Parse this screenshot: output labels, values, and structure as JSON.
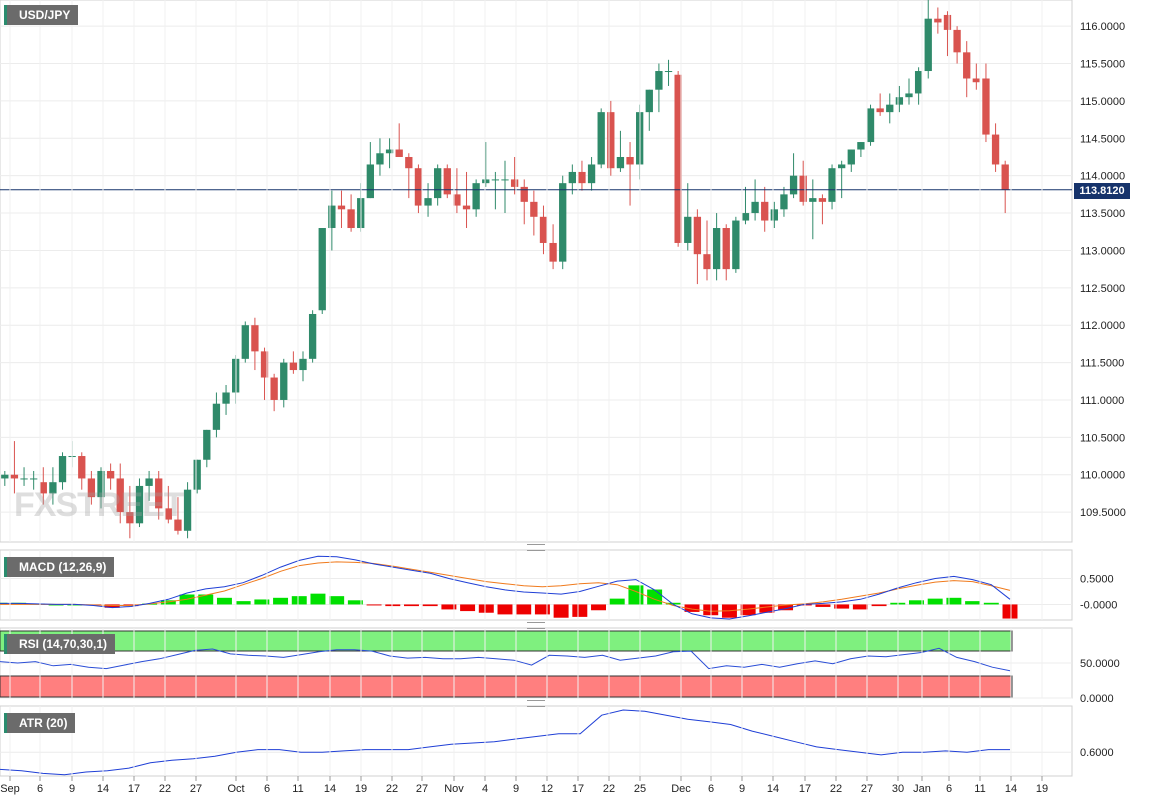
{
  "symbol": "USD/JPY",
  "brand": "FXSTREET",
  "last_price_label": "113.8120",
  "colors": {
    "up": "#2f8a6a",
    "down": "#d9534f",
    "price_line": "#16336b",
    "macd_line": "#1f3fd6",
    "signal_line": "#f07a1c",
    "hist_up": "#00e000",
    "hist_down": "#ee0000",
    "rsi_line": "#2a4dd6",
    "atr_line": "#1f3fd6"
  },
  "price_axis": {
    "ticks": [
      "116.0000",
      "115.5000",
      "115.0000",
      "114.5000",
      "114.0000",
      "113.5000",
      "113.0000",
      "112.5000",
      "112.0000",
      "111.5000",
      "111.0000",
      "110.5000",
      "110.0000",
      "109.5000"
    ]
  },
  "x_axis": {
    "labels": [
      "Sep",
      "6",
      "9",
      "14",
      "17",
      "22",
      "27",
      "Oct",
      "6",
      "11",
      "14",
      "19",
      "22",
      "27",
      "Nov",
      "4",
      "9",
      "12",
      "17",
      "22",
      "25",
      "Dec",
      "6",
      "9",
      "14",
      "17",
      "22",
      "27",
      "30",
      "Jan",
      "6",
      "11",
      "14",
      "19"
    ]
  },
  "panels": {
    "macd": {
      "label": "MACD (12,26,9)",
      "ticks": [
        "0.5000",
        "-0.0000"
      ]
    },
    "rsi": {
      "label": "RSI (14,70,30,1)",
      "ticks": [
        "50.0000",
        "0.0000"
      ]
    },
    "atr": {
      "label": "ATR (20)",
      "ticks": [
        "0.6000"
      ]
    }
  },
  "chart_data": [
    {
      "type": "candlestick",
      "title": "USD/JPY",
      "ylim": [
        109.1,
        116.35
      ],
      "last": 113.812,
      "candles": [
        [
          109.95,
          110.05,
          109.85,
          110.0
        ],
        [
          110.0,
          110.45,
          109.75,
          109.95
        ],
        [
          109.95,
          110.1,
          109.85,
          109.95
        ],
        [
          109.95,
          110.05,
          109.8,
          109.95
        ],
        [
          109.9,
          110.1,
          109.6,
          109.75
        ],
        [
          109.75,
          110.1,
          109.6,
          109.9
        ],
        [
          109.9,
          110.3,
          109.8,
          110.25
        ],
        [
          110.25,
          110.45,
          110.1,
          110.25
        ],
        [
          110.25,
          110.3,
          109.8,
          109.95
        ],
        [
          109.95,
          110.05,
          109.6,
          109.7
        ],
        [
          109.7,
          110.1,
          109.55,
          110.05
        ],
        [
          110.05,
          110.15,
          109.8,
          109.95
        ],
        [
          109.95,
          110.15,
          109.35,
          109.5
        ],
        [
          109.5,
          109.85,
          109.15,
          109.35
        ],
        [
          109.35,
          109.95,
          109.3,
          109.85
        ],
        [
          109.85,
          110.05,
          109.65,
          109.95
        ],
        [
          109.95,
          110.05,
          109.4,
          109.55
        ],
        [
          109.55,
          109.85,
          109.35,
          109.4
        ],
        [
          109.4,
          109.7,
          109.2,
          109.25
        ],
        [
          109.25,
          109.9,
          109.15,
          109.8
        ],
        [
          109.8,
          110.2,
          109.75,
          110.2
        ],
        [
          110.2,
          110.6,
          110.1,
          110.6
        ],
        [
          110.6,
          111.1,
          110.5,
          110.95
        ],
        [
          110.95,
          111.2,
          110.8,
          111.1
        ],
        [
          111.1,
          111.6,
          110.95,
          111.55
        ],
        [
          111.55,
          112.05,
          111.5,
          112.0
        ],
        [
          112.0,
          112.1,
          111.4,
          111.65
        ],
        [
          111.65,
          111.7,
          111.0,
          111.3
        ],
        [
          111.3,
          111.35,
          110.85,
          111.0
        ],
        [
          111.0,
          111.55,
          110.9,
          111.5
        ],
        [
          111.5,
          111.65,
          111.35,
          111.4
        ],
        [
          111.4,
          111.65,
          111.25,
          111.55
        ],
        [
          111.55,
          112.2,
          111.5,
          112.15
        ],
        [
          112.2,
          113.3,
          112.15,
          113.3
        ],
        [
          113.3,
          113.8,
          113.0,
          113.6
        ],
        [
          113.6,
          113.8,
          113.3,
          113.55
        ],
        [
          113.55,
          113.75,
          113.25,
          113.3
        ],
        [
          113.3,
          113.9,
          113.25,
          113.7
        ],
        [
          113.7,
          114.45,
          113.7,
          114.15
        ],
        [
          114.15,
          114.5,
          114.0,
          114.3
        ],
        [
          114.3,
          114.5,
          114.1,
          114.35
        ],
        [
          114.35,
          114.7,
          114.25,
          114.25
        ],
        [
          114.25,
          114.3,
          113.7,
          114.1
        ],
        [
          114.1,
          114.15,
          113.5,
          113.6
        ],
        [
          113.6,
          113.9,
          113.45,
          113.7
        ],
        [
          113.7,
          114.15,
          113.6,
          114.1
        ],
        [
          114.1,
          114.15,
          113.7,
          113.75
        ],
        [
          113.75,
          114.1,
          113.5,
          113.6
        ],
        [
          113.6,
          114.05,
          113.3,
          113.55
        ],
        [
          113.55,
          113.95,
          113.45,
          113.9
        ],
        [
          113.9,
          114.45,
          113.85,
          113.95
        ],
        [
          113.95,
          114.05,
          113.55,
          113.95
        ],
        [
          113.95,
          114.2,
          113.5,
          113.95
        ],
        [
          113.95,
          114.25,
          113.75,
          113.85
        ],
        [
          113.85,
          113.95,
          113.35,
          113.65
        ],
        [
          113.65,
          113.8,
          113.2,
          113.45
        ],
        [
          113.45,
          113.6,
          112.95,
          113.1
        ],
        [
          113.1,
          113.35,
          112.75,
          112.85
        ],
        [
          112.85,
          114.0,
          112.75,
          113.9
        ],
        [
          113.9,
          114.15,
          113.75,
          114.05
        ],
        [
          114.05,
          114.2,
          113.8,
          113.9
        ],
        [
          113.9,
          114.25,
          113.8,
          114.15
        ],
        [
          114.15,
          114.9,
          114.1,
          114.85
        ],
        [
          114.85,
          115.0,
          114.0,
          114.1
        ],
        [
          114.1,
          114.6,
          114.05,
          114.25
        ],
        [
          114.25,
          114.45,
          113.6,
          114.15
        ],
        [
          114.15,
          114.95,
          113.95,
          114.85
        ],
        [
          114.85,
          115.15,
          114.6,
          115.15
        ],
        [
          115.15,
          115.5,
          114.85,
          115.4
        ],
        [
          115.4,
          115.55,
          115.2,
          115.4
        ],
        [
          115.35,
          115.4,
          113.05,
          113.1
        ],
        [
          113.1,
          113.9,
          113.0,
          113.45
        ],
        [
          113.45,
          113.55,
          112.55,
          112.95
        ],
        [
          112.95,
          113.4,
          112.6,
          112.75
        ],
        [
          112.75,
          113.5,
          112.6,
          113.3
        ],
        [
          113.3,
          113.35,
          112.6,
          112.75
        ],
        [
          112.75,
          113.45,
          112.7,
          113.4
        ],
        [
          113.4,
          113.85,
          113.35,
          113.5
        ],
        [
          113.5,
          113.95,
          113.4,
          113.65
        ],
        [
          113.65,
          113.85,
          113.25,
          113.4
        ],
        [
          113.4,
          113.65,
          113.3,
          113.55
        ],
        [
          113.55,
          113.85,
          113.45,
          113.75
        ],
        [
          113.75,
          114.3,
          113.7,
          114.0
        ],
        [
          114.0,
          114.2,
          113.6,
          113.65
        ],
        [
          113.65,
          113.95,
          113.15,
          113.7
        ],
        [
          113.7,
          113.75,
          113.35,
          113.65
        ],
        [
          113.65,
          114.15,
          113.55,
          114.1
        ],
        [
          114.1,
          114.2,
          113.7,
          114.15
        ],
        [
          114.15,
          114.35,
          114.05,
          114.35
        ],
        [
          114.35,
          114.45,
          114.25,
          114.45
        ],
        [
          114.45,
          114.95,
          114.4,
          114.9
        ],
        [
          114.9,
          115.1,
          114.8,
          114.85
        ],
        [
          114.85,
          115.1,
          114.7,
          114.95
        ],
        [
          114.95,
          115.2,
          114.85,
          115.05
        ],
        [
          115.05,
          115.3,
          114.95,
          115.1
        ],
        [
          115.1,
          115.45,
          114.95,
          115.4
        ],
        [
          115.4,
          116.35,
          115.3,
          116.1
        ],
        [
          116.1,
          116.25,
          115.9,
          116.05
        ],
        [
          116.15,
          116.2,
          115.6,
          115.95
        ],
        [
          115.95,
          116.0,
          115.5,
          115.65
        ],
        [
          115.65,
          115.8,
          115.05,
          115.3
        ],
        [
          115.3,
          115.5,
          115.15,
          115.25
        ],
        [
          115.3,
          115.5,
          114.45,
          114.55
        ],
        [
          114.55,
          114.7,
          114.05,
          114.15
        ],
        [
          114.15,
          114.2,
          113.5,
          113.81
        ]
      ]
    },
    {
      "type": "line",
      "title": "MACD (12,26,9)",
      "macd": [
        0.02,
        0.02,
        0.01,
        0.0,
        0.0,
        -0.02,
        -0.06,
        -0.04,
        0.02,
        0.1,
        0.22,
        0.3,
        0.34,
        0.42,
        0.56,
        0.72,
        0.85,
        0.93,
        0.92,
        0.86,
        0.78,
        0.72,
        0.66,
        0.6,
        0.5,
        0.42,
        0.34,
        0.28,
        0.24,
        0.22,
        0.2,
        0.25,
        0.35,
        0.45,
        0.48,
        0.28,
        0.0,
        -0.18,
        -0.26,
        -0.28,
        -0.22,
        -0.15,
        -0.08,
        0.0,
        0.02,
        0.05,
        0.1,
        0.2,
        0.32,
        0.42,
        0.5,
        0.54,
        0.48,
        0.38,
        0.1
      ],
      "signal": [
        0.0,
        0.0,
        0.0,
        0.0,
        0.0,
        -0.01,
        -0.02,
        -0.02,
        0.01,
        0.05,
        0.1,
        0.18,
        0.26,
        0.38,
        0.5,
        0.64,
        0.75,
        0.8,
        0.82,
        0.81,
        0.79,
        0.74,
        0.68,
        0.62,
        0.56,
        0.5,
        0.44,
        0.4,
        0.36,
        0.34,
        0.36,
        0.4,
        0.42,
        0.38,
        0.25,
        0.1,
        -0.02,
        -0.09,
        -0.13,
        -0.12,
        -0.09,
        -0.05,
        -0.01,
        0.01,
        0.05,
        0.1,
        0.16,
        0.22,
        0.3,
        0.37,
        0.43,
        0.46,
        0.44,
        0.36,
        0.27
      ],
      "ylim": [
        -0.3,
        1.05
      ]
    },
    {
      "type": "line",
      "title": "RSI (14,70,30,1)",
      "values": [
        52,
        50,
        52,
        46,
        48,
        44,
        42,
        47,
        52,
        56,
        62,
        68,
        70,
        63,
        61,
        60,
        58,
        62,
        66,
        69,
        69,
        67,
        60,
        57,
        58,
        56,
        56,
        58,
        56,
        54,
        47,
        61,
        60,
        58,
        61,
        54,
        57,
        60,
        66,
        67,
        42,
        46,
        44,
        48,
        44,
        49,
        53,
        49,
        56,
        60,
        59,
        62,
        65,
        71,
        58,
        52,
        44,
        39
      ],
      "ylim": [
        0,
        100
      ]
    },
    {
      "type": "line",
      "title": "ATR (20)",
      "values": [
        0.47,
        0.46,
        0.44,
        0.43,
        0.45,
        0.46,
        0.48,
        0.52,
        0.54,
        0.55,
        0.57,
        0.6,
        0.62,
        0.62,
        0.6,
        0.6,
        0.61,
        0.62,
        0.62,
        0.62,
        0.64,
        0.66,
        0.67,
        0.68,
        0.7,
        0.72,
        0.74,
        0.74,
        0.88,
        0.92,
        0.91,
        0.88,
        0.85,
        0.83,
        0.81,
        0.76,
        0.72,
        0.68,
        0.64,
        0.62,
        0.6,
        0.58,
        0.6,
        0.6,
        0.61,
        0.6,
        0.62,
        0.62
      ],
      "ylim": [
        0.42,
        0.95
      ]
    }
  ]
}
